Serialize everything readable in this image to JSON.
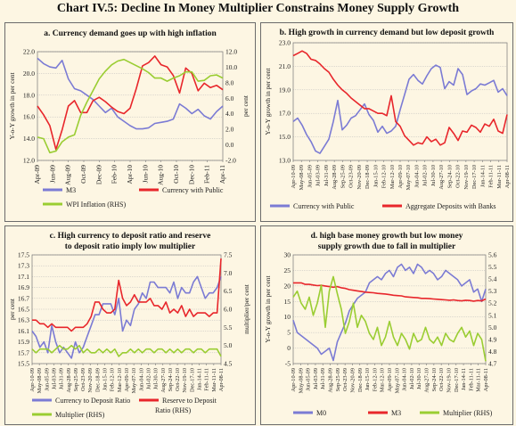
{
  "title": "Chart IV.5: Decline In Money Multiplier Constrains Money Supply Growth",
  "colors": {
    "blue": "#7b7bd4",
    "red": "#e8262b",
    "green": "#9acd32",
    "grid": "#b9b9b9"
  },
  "chart_data": [
    {
      "type": "line",
      "title": "a. Currency demand goes up with high inflation",
      "ylabel": "Y-o-Y growth in per cent",
      "ylabel_right": "per cent",
      "ylim": [
        12.0,
        22.0
      ],
      "yticks": [
        "12.0",
        "14.0",
        "16.0",
        "18.0",
        "20.0",
        "22.0"
      ],
      "ylim_right": [
        -2.0,
        12.0
      ],
      "yticks_right": [
        "-2.0",
        "0.0",
        "2.0",
        "4.0",
        "6.0",
        "8.0",
        "10.0",
        "12.0"
      ],
      "x_ticks": [
        "Apr-09",
        "Jun-09",
        "Aug-09",
        "Oct-09",
        "Dec-09",
        "Feb-10",
        "Apr-10",
        "Jun-10",
        "Aug-10",
        "Oct-10",
        "Dec-10",
        "Feb-11",
        "Apr-11"
      ],
      "series": [
        {
          "name": "M3",
          "color": "blue",
          "axis": "left",
          "values": [
            21.4,
            20.9,
            20.6,
            20.5,
            21.2,
            19.5,
            18.6,
            18.4,
            18.0,
            17.6,
            17.0,
            16.4,
            16.8,
            16.0,
            15.6,
            15.2,
            14.9,
            14.9,
            15.0,
            15.4,
            15.5,
            15.6,
            15.8,
            17.2,
            16.8,
            16.3,
            16.7,
            16.1,
            15.8,
            16.5,
            17.0
          ]
        },
        {
          "name": "Currency with Public",
          "color": "red",
          "axis": "left",
          "values": [
            17.0,
            16.2,
            15.2,
            13.0,
            14.8,
            17.0,
            17.5,
            16.4,
            16.4,
            17.5,
            17.8,
            17.4,
            16.9,
            16.5,
            16.3,
            16.8,
            18.6,
            20.7,
            21.0,
            21.6,
            20.8,
            20.6,
            19.8,
            18.2,
            20.5,
            20.0,
            18.4,
            19.1,
            18.7,
            18.9,
            18.5
          ]
        },
        {
          "name": "WPI Inflation (RHS)",
          "color": "green",
          "axis": "right",
          "values": [
            1.0,
            0.8,
            -1.0,
            -0.8,
            0.4,
            1.0,
            1.3,
            3.8,
            5.5,
            7.0,
            8.5,
            9.5,
            10.3,
            10.8,
            11.0,
            10.6,
            10.2,
            9.8,
            9.3,
            8.6,
            8.6,
            8.2,
            8.6,
            8.9,
            9.4,
            9.4,
            8.2,
            8.3,
            8.9,
            9.0,
            8.6
          ]
        }
      ]
    },
    {
      "type": "line",
      "title": "b. High growth in currency demand but low deposit growth",
      "ylabel": "Y-o-Y growth in per cent",
      "ylim": [
        13.0,
        23.0
      ],
      "yticks": [
        "13.0",
        "15.0",
        "17.0",
        "19.0",
        "21.0",
        "23.0"
      ],
      "x_ticks": [
        "Apr-10-09",
        "May-08-09",
        "Jun-05-09",
        "Jul-03-09",
        "Jul-31-09",
        "Aug-28-09",
        "Sep-25-09",
        "Oct-23-09",
        "Nov-20-09",
        "Dec-18-09",
        "Jan-15-10",
        "Feb-12-10",
        "Mar-12-10",
        "Apr-09-10",
        "May-07-10",
        "Jun-04-10",
        "Jul-02-10",
        "Jul-30-10",
        "Aug-27-10",
        "Sep-24-10",
        "Oct-22-10",
        "Nov-19-10",
        "Dec-17-10",
        "Jan-14-11",
        "Feb-11-11",
        "Mar-11-11",
        "Apr-08-11"
      ],
      "series": [
        {
          "name": "Currency with Public",
          "color": "blue",
          "values": [
            16.3,
            16.6,
            16.0,
            15.2,
            14.6,
            13.8,
            13.6,
            14.2,
            14.8,
            16.3,
            18.1,
            15.6,
            16.0,
            16.6,
            16.8,
            17.3,
            17.8,
            16.9,
            16.4,
            15.4,
            15.9,
            15.3,
            15.5,
            15.9,
            17.3,
            18.6,
            19.9,
            20.3,
            19.8,
            19.5,
            20.2,
            20.8,
            21.1,
            20.9,
            19.1,
            19.7,
            19.4,
            20.8,
            20.3,
            18.6,
            18.9,
            19.1,
            19.5,
            19.4,
            19.6,
            19.8,
            18.8,
            19.1,
            18.5
          ]
        },
        {
          "name": "Aggregate Deposits with Banks",
          "color": "red",
          "values": [
            21.9,
            22.1,
            22.3,
            22.1,
            21.6,
            21.5,
            21.2,
            20.8,
            20.5,
            19.9,
            19.4,
            19.0,
            18.7,
            18.3,
            18.0,
            17.7,
            17.4,
            17.4,
            17.2,
            17.0,
            17.0,
            16.8,
            18.5,
            16.3,
            15.9,
            15.1,
            14.7,
            14.3,
            14.5,
            14.4,
            15.0,
            14.6,
            14.8,
            14.3,
            14.5,
            15.8,
            15.3,
            14.7,
            15.5,
            15.4,
            16.0,
            15.8,
            15.4,
            16.1,
            15.9,
            16.5,
            15.5,
            15.3,
            16.9
          ]
        }
      ]
    },
    {
      "type": "line",
      "title": "c. High currency to deposit ratio and reserve to deposit ratio imply low multiplier",
      "ylabel": "per cent",
      "ylabel_right": "multiplier/per cent",
      "ylim": [
        15.5,
        17.5
      ],
      "yticks": [
        "15.5",
        "15.7",
        "15.9",
        "16.1",
        "16.3",
        "16.5",
        "16.7",
        "16.9",
        "17.1",
        "17.3",
        "17.5"
      ],
      "ylim_right": [
        4.5,
        7.5
      ],
      "yticks_right": [
        "4.5",
        "5.0",
        "5.5",
        "6.0",
        "6.5",
        "7.0",
        "7.5"
      ],
      "x_ticks": [
        "Apr-10-09",
        "May-08-09",
        "Jun-05-09",
        "Jul-03-09",
        "Jul-31-09",
        "Aug-28-09",
        "Sep-25-09",
        "Oct-23-09",
        "Nov-20-09",
        "Dec-18-09",
        "Jan-15-10",
        "Feb-12-10",
        "Mar-12-10",
        "Apr-09-10",
        "May-07-10",
        "Jun-04-10",
        "Jul-02-10",
        "Jul-30-10",
        "Aug-27-10",
        "Sep-24-10",
        "Oct-22-10",
        "Nov-19-10",
        "Dec-17-10",
        "Jan-14-11",
        "Feb-11-11",
        "Mar-11-11",
        "Apr-08-11"
      ],
      "series": [
        {
          "name": "Currency to Deposit Ratio",
          "color": "blue",
          "axis": "left",
          "values": [
            16.1,
            16.0,
            15.8,
            15.9,
            15.7,
            16.2,
            15.9,
            15.7,
            15.8,
            15.7,
            15.6,
            15.9,
            15.7,
            15.8,
            16.0,
            16.2,
            16.4,
            16.4,
            16.6,
            16.6,
            16.6,
            16.4,
            16.7,
            16.1,
            16.3,
            16.2,
            16.5,
            16.6,
            16.8,
            16.7,
            17.0,
            17.0,
            16.9,
            16.9,
            16.9,
            16.8,
            17.0,
            16.7,
            16.9,
            16.8,
            16.8,
            17.0,
            17.1,
            16.9,
            16.7,
            16.8,
            16.8,
            16.9,
            17.1
          ]
        },
        {
          "name": "Reserve to Deposit Ratio (RHS)",
          "color": "red",
          "axis": "right",
          "values": [
            5.7,
            5.7,
            5.6,
            5.6,
            5.5,
            5.6,
            5.5,
            5.5,
            5.5,
            5.5,
            5.4,
            5.5,
            5.5,
            5.5,
            5.6,
            5.8,
            6.2,
            6.2,
            6.0,
            5.9,
            5.9,
            6.0,
            6.8,
            6.3,
            6.1,
            6.2,
            6.4,
            6.2,
            6.2,
            6.2,
            6.3,
            6.1,
            6.1,
            6.0,
            6.2,
            5.9,
            6.0,
            5.9,
            6.1,
            5.8,
            6.0,
            5.8,
            5.9,
            5.9,
            5.9,
            5.8,
            5.9,
            5.9,
            7.4
          ]
        },
        {
          "name": "Multiplier (RHS)",
          "color": "green",
          "axis": "right",
          "values": [
            4.9,
            4.8,
            4.9,
            4.9,
            4.9,
            4.8,
            4.9,
            5.0,
            4.9,
            4.9,
            5.0,
            4.9,
            5.0,
            4.8,
            4.9,
            4.8,
            4.8,
            4.9,
            4.8,
            4.9,
            4.8,
            4.9,
            4.7,
            4.8,
            4.8,
            4.9,
            4.8,
            4.9,
            4.8,
            4.9,
            4.9,
            4.8,
            4.9,
            4.9,
            4.8,
            4.9,
            4.8,
            4.9,
            4.8,
            4.9,
            4.9,
            4.8,
            4.9,
            4.9,
            4.8,
            4.9,
            4.9,
            4.9,
            4.7
          ]
        }
      ]
    },
    {
      "type": "line",
      "title": "d. high base money growth but low money supply growth due to fall in multiplier",
      "ylabel": "Y-o-Y growth in per cent",
      "ylim": [
        -5,
        30
      ],
      "yticks": [
        "-5",
        "0",
        "5",
        "10",
        "15",
        "20",
        "25",
        "30"
      ],
      "ylim_right": [
        4.7,
        5.6
      ],
      "yticks_right": [
        "4.7",
        "4.8",
        "4.9",
        "5.0",
        "5.1",
        "5.2",
        "5.3",
        "5.4",
        "5.5",
        "5.6"
      ],
      "x_ticks": [
        "Apr-10-09",
        "May-08-09",
        "Jun-05-09",
        "Jul-03-09",
        "Jul-31-09",
        "Aug-28-09",
        "Sep-25-09",
        "Oct-23-09",
        "Nov-20-09",
        "Dec-18-09",
        "Jan-15-10",
        "Feb-12-10",
        "Mar-12-10",
        "Apr-09-10",
        "May-07-10",
        "Jun-04-10",
        "Jul-02-10",
        "Jul-30-10",
        "Aug-27-10",
        "Sep-24-10",
        "Oct-22-10",
        "Nov-19-10",
        "Dec-17-10",
        "Jan-14-11",
        "Feb-11-11",
        "Mar-11-11",
        "Apr-08-11"
      ],
      "series": [
        {
          "name": "M0",
          "color": "blue",
          "axis": "left",
          "values": [
            9,
            5,
            4,
            3,
            2,
            1,
            0,
            -2,
            -1,
            0,
            -4,
            2,
            5,
            8,
            12,
            14,
            16,
            17,
            18,
            21,
            22,
            23,
            22,
            24,
            25,
            23,
            26,
            27,
            25,
            26,
            24,
            27,
            26,
            24,
            25,
            24,
            22,
            23,
            25,
            24,
            23,
            22,
            20,
            21,
            22,
            18,
            19,
            15,
            19
          ]
        },
        {
          "name": "M3",
          "color": "red",
          "axis": "left",
          "values": [
            21,
            21,
            21,
            20.5,
            20.5,
            20.3,
            20.1,
            20.2,
            20.0,
            19.8,
            19.6,
            19.8,
            19.4,
            19.2,
            18.8,
            18.6,
            18.4,
            18.2,
            18.0,
            17.9,
            17.8,
            17.6,
            17.5,
            17.4,
            17.2,
            17.0,
            16.9,
            16.8,
            16.5,
            16.4,
            16.3,
            16.2,
            16.0,
            16.0,
            15.9,
            15.8,
            15.7,
            15.6,
            15.5,
            15.4,
            15.5,
            15.3,
            15.2,
            15.4,
            15.3,
            15.1,
            15.3,
            15.2,
            15.8
          ]
        },
        {
          "name": "Multiplier (RHS)",
          "color": "green",
          "axis": "right",
          "values": [
            5.25,
            5.3,
            5.2,
            5.15,
            5.25,
            5.1,
            5.2,
            5.35,
            5.0,
            5.3,
            5.42,
            5.28,
            5.15,
            4.95,
            5.05,
            5.2,
            5.0,
            5.1,
            5.05,
            4.95,
            4.9,
            5.0,
            4.85,
            4.92,
            5.05,
            4.92,
            4.85,
            4.95,
            4.9,
            4.82,
            4.95,
            4.88,
            4.9,
            5.0,
            4.9,
            4.87,
            4.92,
            4.85,
            4.95,
            4.9,
            4.88,
            4.95,
            5.0,
            4.92,
            4.97,
            4.85,
            4.95,
            4.9,
            4.72
          ]
        }
      ]
    }
  ]
}
